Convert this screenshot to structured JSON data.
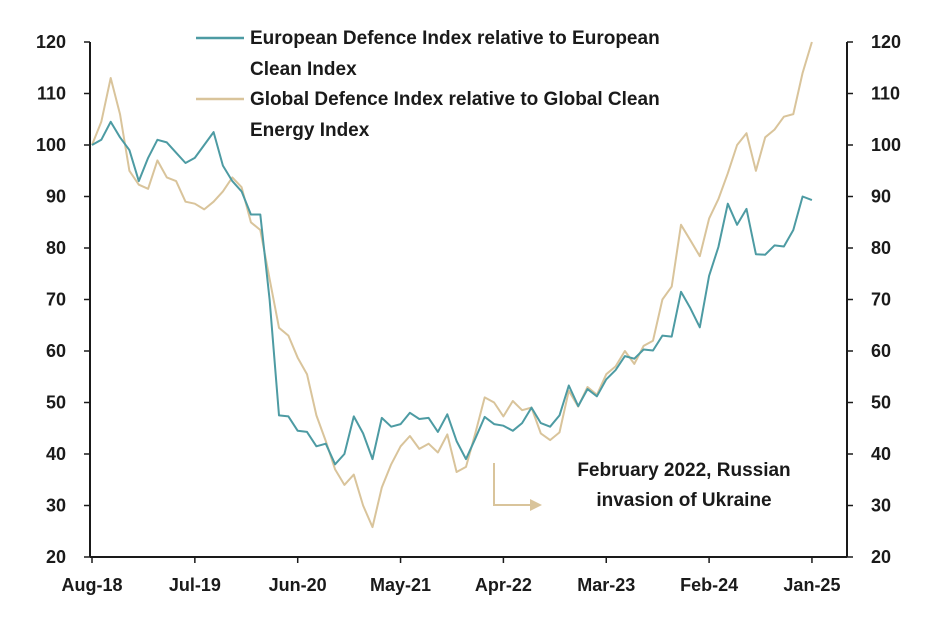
{
  "chart_data": {
    "type": "line",
    "title": "",
    "xlabel": "",
    "ylabel": "",
    "ylim": [
      20,
      120
    ],
    "y_ticks": [
      20,
      30,
      40,
      50,
      60,
      70,
      80,
      90,
      100,
      110,
      120
    ],
    "x_tick_labels": [
      "Aug-18",
      "Jul-19",
      "Jun-20",
      "May-21",
      "Apr-22",
      "Mar-23",
      "Feb-24",
      "Jan-25"
    ],
    "x_tick_month_index": [
      0,
      11,
      22,
      33,
      44,
      55,
      66,
      77
    ],
    "legend_position": "top",
    "series": [
      {
        "name": "European Defence Index relative to European Clean Index",
        "color": "#4d9ba3",
        "values": [
          100,
          101,
          104.5,
          101.5,
          99,
          93,
          97.5,
          101,
          100.5,
          98.5,
          96.5,
          97.5,
          100,
          102.5,
          96,
          93,
          91,
          86.5,
          86.5,
          70,
          47.5,
          47.3,
          44.5,
          44.3,
          41.5,
          42,
          38,
          40,
          47.3,
          44,
          39,
          47,
          45.3,
          45.8,
          48,
          46.8,
          47,
          44.3,
          47.7,
          42.5,
          39,
          43,
          47.2,
          45.8,
          45.5,
          44.5,
          46,
          49,
          46,
          45.3,
          47.5,
          53.3,
          49.3,
          52.6,
          51.2,
          54.5,
          56.3,
          59,
          58.5,
          60.3,
          60.1,
          63,
          62.8,
          71.5,
          68.3,
          64.6,
          74.6,
          80.2,
          88.6,
          84.5,
          87.6,
          78.8,
          78.7,
          80.5,
          80.3,
          83.5,
          90,
          89.3
        ]
      },
      {
        "name": "Global Defence Index relative to Global Clean Energy Index",
        "color": "#d9c49b",
        "values": [
          100,
          104.5,
          113,
          106,
          95,
          92.3,
          91.5,
          97,
          93.7,
          93,
          89,
          88.6,
          87.5,
          89,
          91,
          93.7,
          91.8,
          85,
          83.5,
          74,
          64.5,
          63,
          58.7,
          55.5,
          47.5,
          42.5,
          37,
          34,
          36,
          30,
          25.8,
          33.5,
          38,
          41.5,
          43.5,
          41,
          42,
          40.3,
          43.8,
          36.5,
          37.5,
          44,
          51,
          50,
          47.3,
          50.3,
          48.5,
          49,
          44,
          42.7,
          44.2,
          52.3,
          49.2,
          53,
          51.5,
          55.5,
          57,
          60,
          57.5,
          61,
          62,
          70,
          72.5,
          84.5,
          81.5,
          78.4,
          85.7,
          89.5,
          94.5,
          100,
          102.3,
          95,
          101.5,
          103,
          105.5,
          106,
          114,
          120
        ]
      }
    ],
    "annotations": [
      {
        "text_lines": [
          "February 2022, Russian",
          "invasion of Ukrainе"
        ],
        "arrow": "right",
        "month_index": 42
      }
    ]
  },
  "colors": {
    "axis": "#1a1a1a",
    "arrow": "#d9c49b"
  }
}
